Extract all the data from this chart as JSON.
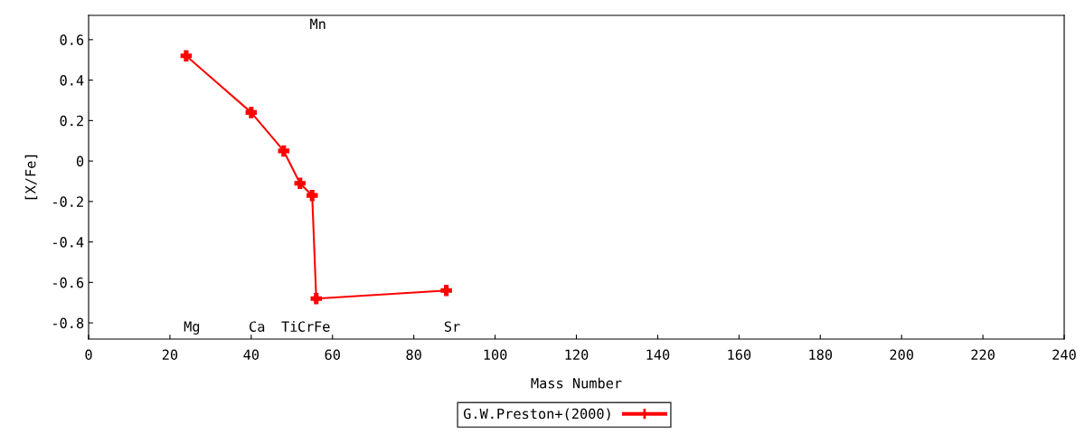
{
  "chart_data": {
    "type": "line",
    "xlabel": "Mass Number",
    "ylabel": "[X/Fe]",
    "x": [
      24,
      40,
      48,
      52,
      55,
      56,
      88
    ],
    "series": [
      {
        "name": "G.W.Preston+(2000)",
        "color": "#ff0000",
        "values": [
          0.52,
          0.24,
          0.05,
          -0.11,
          -0.17,
          -0.68,
          -0.64
        ]
      }
    ],
    "xlim": [
      0,
      240
    ],
    "xticks": [
      0,
      20,
      40,
      60,
      80,
      100,
      120,
      140,
      160,
      180,
      200,
      220,
      240
    ],
    "ylim": [
      -0.88,
      0.72
    ],
    "yticks": [
      -0.8,
      -0.6,
      -0.4,
      -0.2,
      0,
      0.2,
      0.4,
      0.6
    ],
    "marker": "cross",
    "line_style": "solid",
    "grid": false,
    "legend": "bottom",
    "annotations": [
      "Mg",
      "Ca",
      "Ti",
      "Cr",
      "Mn",
      "Fe",
      "Sr"
    ]
  }
}
